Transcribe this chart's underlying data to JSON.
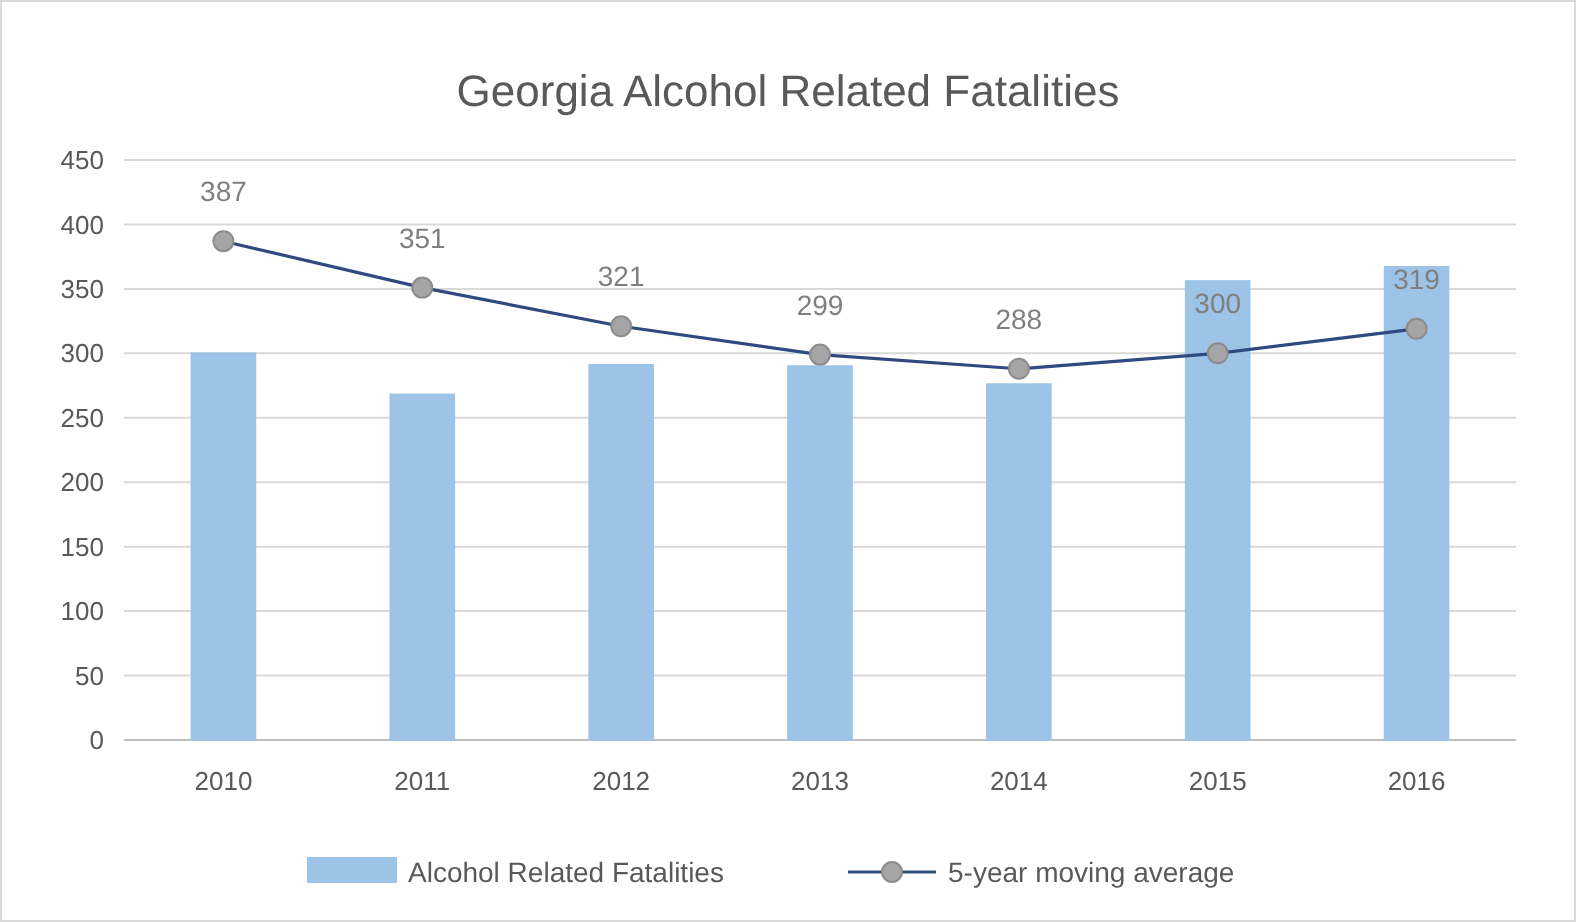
{
  "chart_data": {
    "type": "bar",
    "title": "Georgia Alcohol Related Fatalities",
    "categories": [
      "2010",
      "2011",
      "2012",
      "2013",
      "2014",
      "2015",
      "2016"
    ],
    "series": [
      {
        "name": "Alcohol Related Fatalities",
        "color": "#9dc3e6",
        "values": [
          300,
          268,
          291,
          290,
          276,
          356,
          367
        ]
      },
      {
        "name": "5-year moving average",
        "type": "line",
        "color": "#2f4a7f",
        "marker": "circle",
        "values": [
          387,
          351,
          321,
          299,
          288,
          300,
          319
        ],
        "value_labels": [
          "387",
          "351",
          "321",
          "299",
          "288",
          "300",
          "319"
        ]
      }
    ],
    "ylim": [
      0,
      450
    ],
    "yticks": [
      0,
      50,
      100,
      150,
      200,
      250,
      300,
      350,
      400,
      450
    ],
    "grid": "y",
    "legend": "bottom"
  }
}
